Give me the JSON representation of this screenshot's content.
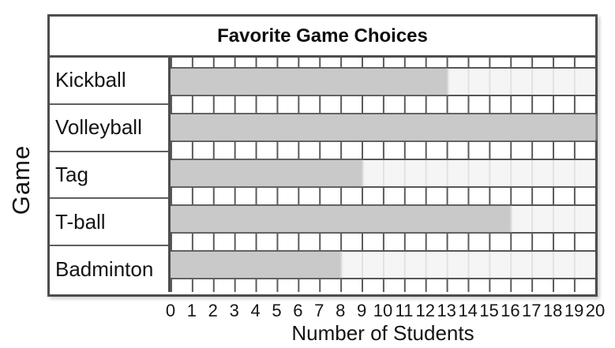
{
  "chart_data": {
    "type": "bar",
    "orientation": "horizontal",
    "title": "Favorite Game Choices",
    "xlabel": "Number of Students",
    "ylabel": "Game",
    "categories": [
      "Kickball",
      "Volleyball",
      "Tag",
      "T-ball",
      "Badminton"
    ],
    "values": [
      13,
      20,
      9,
      16,
      8
    ],
    "xlim": [
      0,
      20
    ],
    "x_tick_step": 1,
    "x_tick_labels": [
      "0",
      "1",
      "2",
      "3",
      "4",
      "5",
      "6",
      "7",
      "8",
      "9",
      "10",
      "11",
      "12",
      "13",
      "14",
      "15",
      "16",
      "17",
      "18",
      "19",
      "20"
    ],
    "grid": true,
    "legend": false,
    "colors": {
      "bar_fill": "#c9c9c9",
      "band_background": "#f5f5f5",
      "grid_line_dark": "#5a5a5a",
      "grid_line_faint": "#e2e2e2",
      "frame_border": "#4d4d4d",
      "text": "#141414"
    }
  }
}
